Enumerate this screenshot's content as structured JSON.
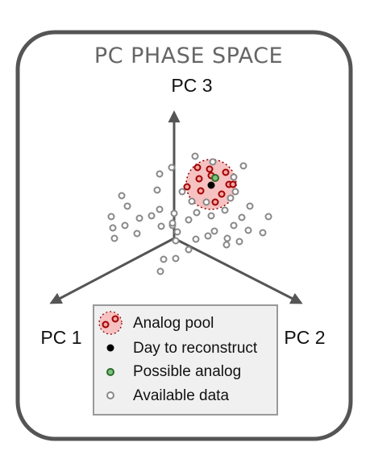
{
  "title": "PC PHASE SPACE",
  "axes": {
    "pc1": "PC 1",
    "pc2": "PC 2",
    "pc3": "PC 3"
  },
  "legend": {
    "analog_pool": "Analog pool",
    "day_to_reconstruct": "Day to reconstruct",
    "possible_analog": "Possible analog",
    "available_data": "Available data"
  },
  "colors": {
    "frame": "#555555",
    "axis": "#555555",
    "pool_fill": "#f6c1c1",
    "pool_edge": "#8b0000",
    "analog_point_edge": "#a00000",
    "analog_point_fill": "#f4a6a6",
    "possible_analog": "#2e8b2e",
    "target_day": "#000000",
    "available_data": "#888888",
    "legend_bg": "#f0f0f0",
    "legend_border": "#999999"
  }
}
